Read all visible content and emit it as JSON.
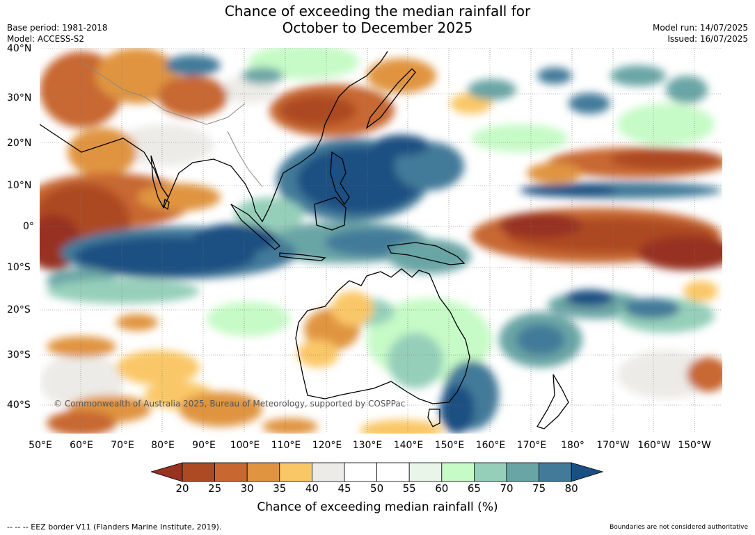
{
  "title": {
    "line1": "Chance of exceeding the median rainfall for",
    "line2": "October to December 2025"
  },
  "meta": {
    "base_period": "Base period: 1981-2018",
    "model": "Model: ACCESS-S2",
    "model_run": "Model run: 14/07/2025",
    "issued": "Issued: 16/07/2025"
  },
  "map": {
    "copyright": "© Commonwealth of Australia 2025, Bureau of Meteorology, supported by COSPPac",
    "lat_labels": [
      "40°N",
      "30°N",
      "20°N",
      "10°N",
      "0°",
      "10°S",
      "20°S",
      "30°S",
      "40°S"
    ],
    "lon_labels": [
      "50°E",
      "60°E",
      "70°E",
      "80°E",
      "90°E",
      "100°E",
      "110°E",
      "120°E",
      "130°E",
      "140°E",
      "150°E",
      "160°E",
      "170°E",
      "180°",
      "170°W",
      "160°W",
      "150°W"
    ]
  },
  "colorbar": {
    "title": "Chance of exceeding median rainfall (%)",
    "labels": [
      "20",
      "25",
      "30",
      "35",
      "40",
      "45",
      "50",
      "55",
      "60",
      "65",
      "70",
      "75",
      "80"
    ],
    "colors": [
      "#973320",
      "#ad4a24",
      "#c86730",
      "#e0943f",
      "#fac767",
      "#ecebe7",
      "#ffffff",
      "#ffffff",
      "#e9f5e9",
      "#c6fac6",
      "#95cfba",
      "#6aa5a5",
      "#437a9a",
      "#1a4f82"
    ]
  },
  "footer": {
    "eez": "--  --  -- EEZ border V11 (Flanders Marine Institute, 2019).",
    "note": "Boundaries are not considered authoritative"
  }
}
